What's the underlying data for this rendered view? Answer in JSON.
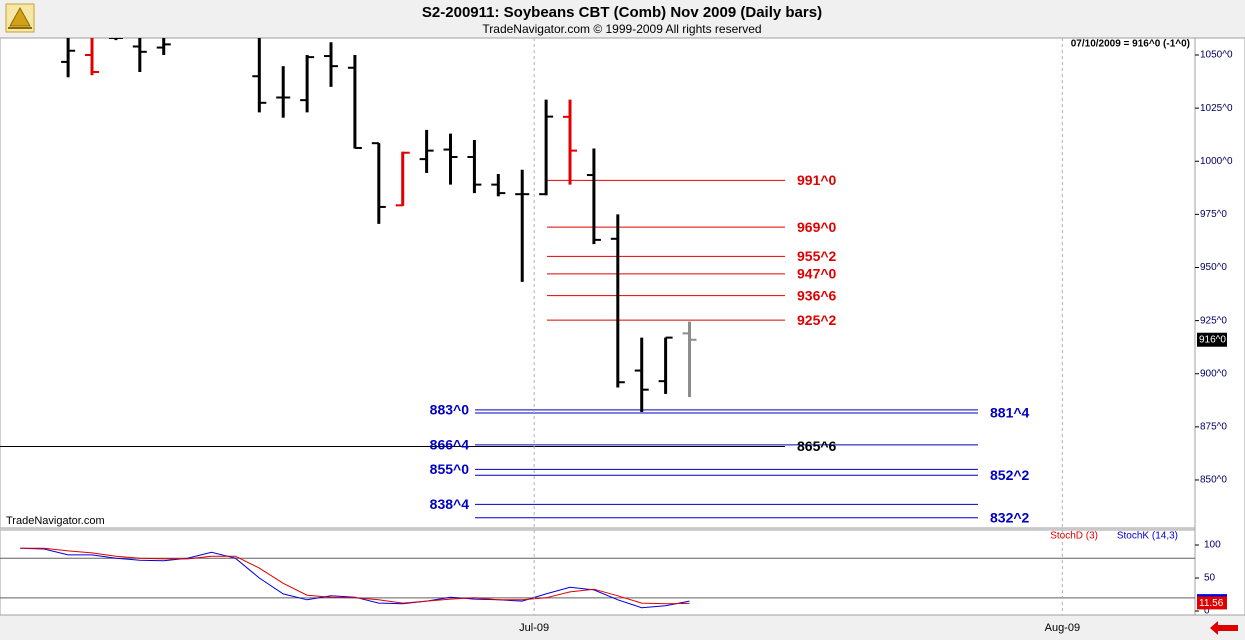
{
  "chart_data": [
    {
      "type": "ohlc",
      "title": "S2-200911:  Soybeans CBT (Comb) Nov 2009  (Daily bars)",
      "subtitle": "TradeNavigator.com © 1999-2009 All rights reserved",
      "watermark": "TradeNavigator.com",
      "last_info": "07/10/2009 = 916^0 (-1^0)",
      "last_price": {
        "value": 916,
        "label": "916^0"
      },
      "x": [
        0,
        1,
        2,
        3,
        4,
        5,
        6,
        7,
        8,
        9,
        10,
        11,
        12,
        13,
        14,
        15,
        16,
        17,
        18,
        19,
        20,
        21,
        22,
        23,
        24,
        25,
        26
      ],
      "open": [
        1046.75,
        1050,
        1058,
        1054,
        1053.5,
        null,
        null,
        null,
        1040,
        1030,
        1028.75,
        1049.5,
        1044,
        1008.5,
        979.25,
        1001,
        1005.5,
        1002,
        989,
        984.5,
        984.5,
        1020.9,
        993.5,
        963.5,
        901.5,
        896.5,
        919
      ],
      "high": [
        1062,
        1062,
        1060,
        1062,
        1062,
        null,
        null,
        null,
        1062,
        1044.75,
        1050,
        1056,
        1050,
        1008.5,
        1004.5,
        1014.75,
        1013,
        1010,
        994,
        996,
        1029,
        1029,
        1006,
        975,
        917,
        917,
        924.5
      ],
      "low": [
        1039.5,
        1040.5,
        1057,
        1042,
        1050,
        null,
        null,
        null,
        1023,
        1020.5,
        1023,
        1035,
        1006,
        970.5,
        979,
        994.5,
        989,
        985,
        983.5,
        943.25,
        984,
        989,
        961,
        893.5,
        882,
        890.5,
        889
      ],
      "close": [
        1052,
        1042,
        1058,
        1051.5,
        1055,
        null,
        null,
        null,
        1027.5,
        1030,
        1049,
        1044.75,
        1006.25,
        978.5,
        1004,
        1005,
        1002,
        989,
        985,
        984.5,
        1021,
        1005,
        963,
        896,
        892.5,
        917,
        916
      ],
      "colors": [
        "#000000",
        "#e00000",
        "#000000",
        "#000000",
        "#000000",
        null,
        null,
        null,
        "#000000",
        "#000000",
        "#000000",
        "#000000",
        "#000000",
        "#000000",
        "#e00000",
        "#000000",
        "#000000",
        "#000000",
        "#000000",
        "#000000",
        "#000000",
        "#e00000",
        "#000000",
        "#000000",
        "#000000",
        "#000000",
        "#8c8c8c"
      ],
      "xlim": [
        -2.85,
        47.15
      ],
      "xticks": [
        {
          "value": 19.5,
          "label": "Jul-09"
        },
        {
          "value": 41.6,
          "label": "Aug-09"
        }
      ],
      "ylim": [
        827.4,
        1058
      ],
      "yticks": [
        {
          "value": 850,
          "label": "850^0"
        },
        {
          "value": 875,
          "label": "875^0"
        },
        {
          "value": 900,
          "label": "900^0"
        },
        {
          "value": 925,
          "label": "925^0"
        },
        {
          "value": 950,
          "label": "950^0"
        },
        {
          "value": 975,
          "label": "975^0"
        },
        {
          "value": 1000,
          "label": "1000^0"
        },
        {
          "value": 1025,
          "label": "1025^0"
        },
        {
          "value": 1050,
          "label": "1050^0"
        }
      ],
      "levels": [
        {
          "value": 991,
          "label": "991^0",
          "style": "resistance",
          "color": "#e00000",
          "label_side": "right"
        },
        {
          "value": 969,
          "label": "969^0",
          "style": "resistance",
          "color": "#e00000",
          "label_side": "right"
        },
        {
          "value": 955.25,
          "label": "955^2",
          "style": "resistance",
          "color": "#e00000",
          "label_side": "right"
        },
        {
          "value": 947,
          "label": "947^0",
          "style": "resistance",
          "color": "#e00000",
          "label_side": "right"
        },
        {
          "value": 936.75,
          "label": "936^6",
          "style": "resistance",
          "color": "#e00000",
          "label_side": "right"
        },
        {
          "value": 925.25,
          "label": "925^2",
          "style": "resistance",
          "color": "#e00000",
          "label_side": "right"
        },
        {
          "value": 883,
          "label": "883^0",
          "style": "support",
          "color": "#0000c0",
          "label_side": "left"
        },
        {
          "value": 881.5,
          "label": "881^4",
          "style": "support",
          "color": "#0000c0",
          "label_side": "right"
        },
        {
          "value": 866.5,
          "label": "866^4",
          "style": "support",
          "color": "#0000c0",
          "label_side": "left"
        },
        {
          "value": 865.75,
          "label": "865^6",
          "style": "pivot",
          "color": "#000000",
          "label_side": "right"
        },
        {
          "value": 855,
          "label": "855^0",
          "style": "support",
          "color": "#0000c0",
          "label_side": "left"
        },
        {
          "value": 852.25,
          "label": "852^2",
          "style": "support",
          "color": "#0000c0",
          "label_side": "right"
        },
        {
          "value": 838.5,
          "label": "838^4",
          "style": "support",
          "color": "#0000c0",
          "label_side": "left"
        },
        {
          "value": 832.25,
          "label": "832^2",
          "style": "support",
          "color": "#0000c0",
          "label_side": "right"
        }
      ]
    },
    {
      "type": "line",
      "x": [
        -2,
        -1,
        0,
        1,
        2,
        3,
        4,
        5,
        6,
        7,
        8,
        9,
        10,
        11,
        12,
        13,
        14,
        15,
        16,
        17,
        18,
        19,
        20,
        21,
        22,
        23,
        24,
        25,
        26
      ],
      "series": [
        {
          "name": "StochD (3)",
          "color": "#e00000",
          "values": [
            95,
            95,
            91,
            88,
            83,
            80,
            79,
            79,
            83,
            83,
            65,
            42,
            24,
            21,
            20,
            17,
            12,
            15,
            18,
            20,
            17,
            17,
            20,
            29,
            33,
            23,
            12,
            11,
            11.56
          ]
        },
        {
          "name": "StochK (14,3)",
          "color": "#0000e0",
          "values": [
            95,
            94,
            85,
            85,
            80,
            77,
            76,
            80,
            89,
            80,
            50,
            26,
            17,
            23,
            21,
            12,
            11,
            15,
            21,
            18,
            17,
            15,
            26,
            36,
            32,
            17,
            5,
            8,
            15
          ]
        }
      ],
      "xlim": [
        -2.85,
        47.15
      ],
      "ylim": [
        -6,
        122.7
      ],
      "yticks": [
        0,
        50,
        100
      ],
      "reference_lines": [
        80,
        20
      ]
    }
  ]
}
